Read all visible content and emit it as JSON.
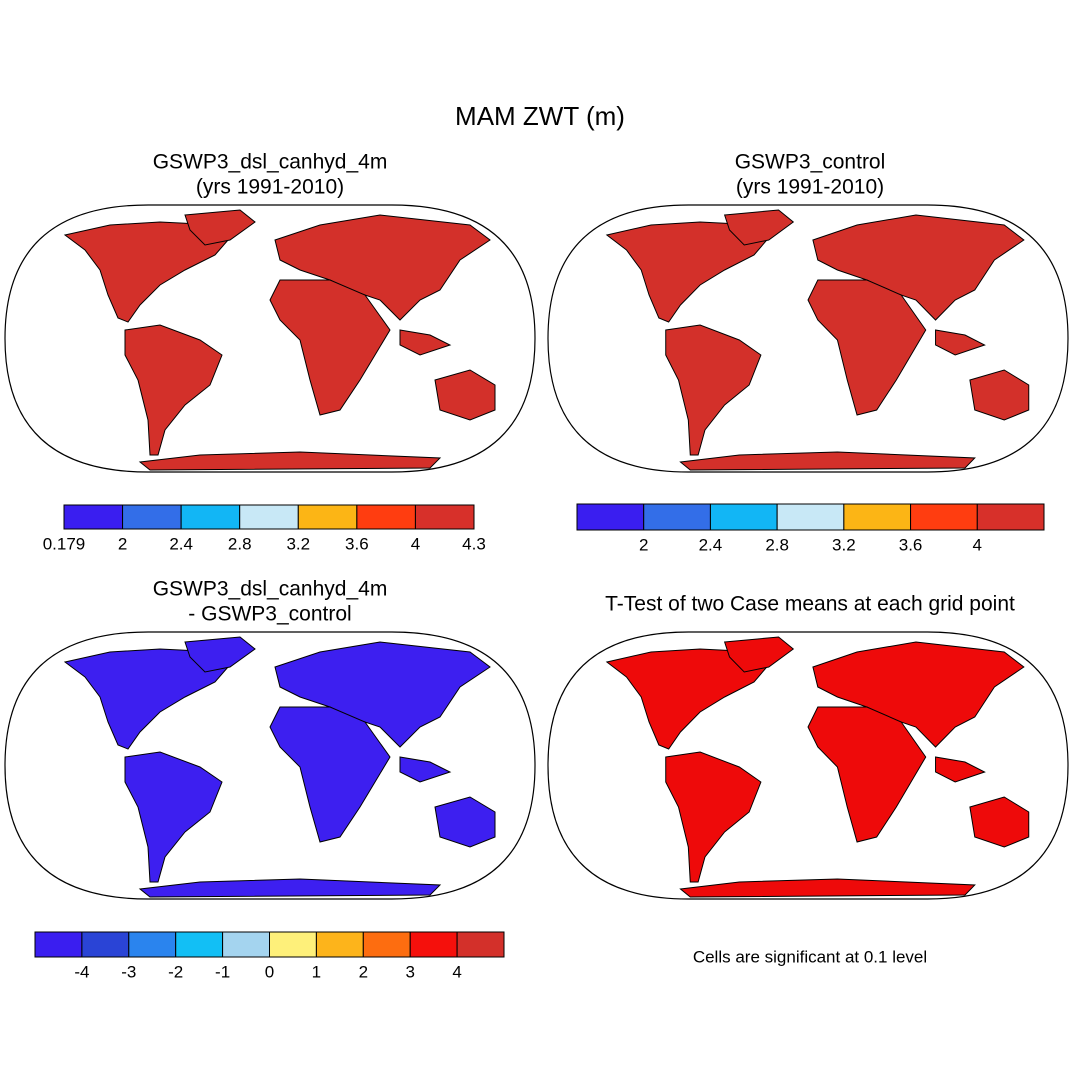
{
  "title": "MAM ZWT (m)",
  "panels": [
    {
      "title": "GSWP3_dsl_canhyd_4m",
      "subtitle": "(yrs 1991-2010)"
    },
    {
      "title": "GSWP3_control",
      "subtitle": "(yrs 1991-2010)"
    },
    {
      "title": "GSWP3_dsl_canhyd_4m",
      "subtitle": "- GSWP3_control"
    },
    {
      "title": "T-Test of two Case means at each grid point",
      "note": "Cells are significant at 0.1 level"
    }
  ],
  "colorbars": [
    {
      "colors": [
        "#3a1ef0",
        "#336ee8",
        "#12b6f5",
        "#c8e8f6",
        "#fcb515",
        "#ff3d10",
        "#d7302a"
      ],
      "labels": [
        0.179,
        2,
        2.4,
        2.8,
        3.2,
        3.6,
        4,
        4.3
      ]
    },
    {
      "colors": [
        "#3a1ef0",
        "#336ee8",
        "#12b6f5",
        "#c8e8f6",
        "#fcb515",
        "#ff3d10",
        "#d7302a"
      ],
      "labels": [
        2,
        2.4,
        2.8,
        3.2,
        3.6,
        4
      ]
    },
    {
      "colors": [
        "#3a1ef0",
        "#2a44d6",
        "#2a84ee",
        "#12bff5",
        "#a4d4ef",
        "#fef07a",
        "#fdb41b",
        "#fd6d10",
        "#f5100c",
        "#d3302a"
      ],
      "labels": [
        -4,
        -3,
        -2,
        -1,
        0,
        1,
        2,
        3,
        4
      ]
    }
  ]
}
